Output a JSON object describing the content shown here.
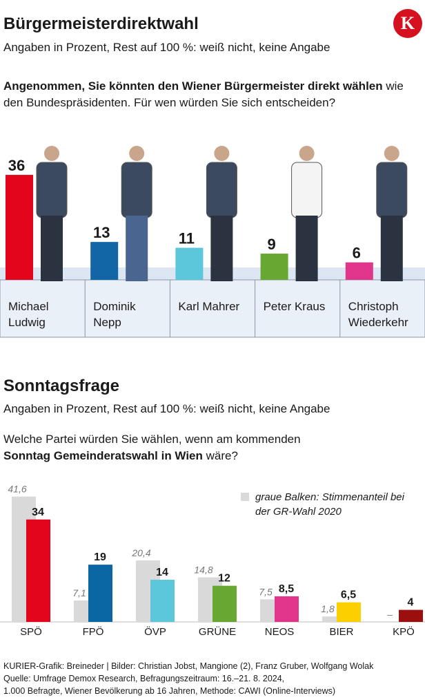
{
  "logo": "K",
  "chart_data": [
    {
      "type": "bar",
      "title": "Bürgermeisterdirektwahl",
      "subtitle": "Angaben in Prozent, Rest auf 100 %: weiß nicht, keine Angabe",
      "question_bold": "Angenommen, Sie könnten den Wiener Bürgermeister direkt wählen",
      "question_rest": " wie den Bundespräsidenten. Für wen würden Sie sich entscheiden?",
      "categories": [
        "Michael Ludwig",
        "Dominik Nepp",
        "Karl Mahrer",
        "Peter Kraus",
        "Christoph Wiederkehr"
      ],
      "values": [
        36,
        13,
        11,
        9,
        6
      ],
      "colors": [
        "#e3051b",
        "#1266a5",
        "#5cc6da",
        "#67a832",
        "#e0358a"
      ]
    },
    {
      "type": "grouped-bar",
      "title": "Sonntagsfrage",
      "subtitle": "Angaben in Prozent, Rest auf 100 %: weiß nicht, keine Angabe",
      "question_start": "Welche Partei würden Sie wählen, wenn am kommenden ",
      "question_bold": "Sonntag Gemeinderatswahl in Wien",
      "question_end": " wäre?",
      "categories": [
        "SPÖ",
        "FPÖ",
        "ÖVP",
        "GRÜNE",
        "NEOS",
        "BIER",
        "KPÖ"
      ],
      "series": [
        {
          "name": "graue Balken: Stimmenanteil bei der GR-Wahl 2020",
          "color": "#d9d9d9",
          "values": [
            41.6,
            7.1,
            20.4,
            14.8,
            7.5,
            1.8,
            null
          ],
          "value_labels": [
            "41,6",
            "7,1",
            "20,4",
            "14,8",
            "7,5",
            "1,8",
            "–"
          ]
        },
        {
          "colors": [
            "#e3051b",
            "#0a67a3",
            "#5cc6da",
            "#67a832",
            "#e0358a",
            "#fcd000",
            "#9b0f0f"
          ],
          "values": [
            34,
            19,
            14,
            12,
            8.5,
            6.5,
            4
          ],
          "value_labels": [
            "34",
            "19",
            "14",
            "12",
            "8,5",
            "6,5",
            "4"
          ]
        }
      ]
    }
  ],
  "footer": [
    "KURIER-Grafik: Breineder | Bilder: Christian Jobst, Mangione (2), Franz Gruber, Wolfgang Wolak",
    "Quelle: Umfrage Demox Research, Befragungszeitraum: 16.–21. 8. 2024,",
    "1.000 Befragte, Wiener Bevölkerung ab 16 Jahren, Methode: CAWI (Online-Interviews)"
  ]
}
